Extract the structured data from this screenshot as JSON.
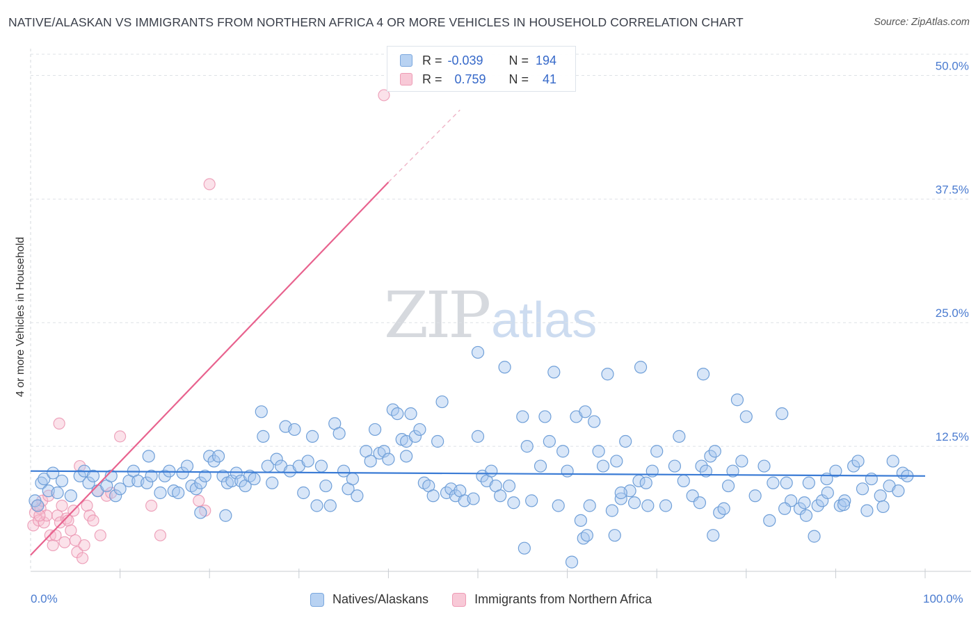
{
  "header": {
    "title": "NATIVE/ALASKAN VS IMMIGRANTS FROM NORTHERN AFRICA 4 OR MORE VEHICLES IN HOUSEHOLD CORRELATION CHART",
    "source": "Source: ZipAtlas.com"
  },
  "watermark": {
    "zip": "ZIP",
    "atlas": "atlas"
  },
  "legend": {
    "rows": [
      {
        "r_label": "R =",
        "r_value": "-0.039",
        "n_label": "N =",
        "n_value": "194"
      },
      {
        "r_label": "R =",
        "r_value": "0.759",
        "n_label": "N =",
        "n_value": "41"
      }
    ]
  },
  "colors": {
    "blue_fill": "#a9c8ef",
    "blue_stroke": "#6f9fd8",
    "blue_line": "#3a7bd5",
    "pink_fill": "#f6bfd0",
    "pink_stroke": "#ea8fac",
    "pink_line": "#e8628e",
    "grid": "#dde1e6",
    "tick_text": "#4a7bd0"
  },
  "chart_data": {
    "type": "scatter",
    "title": "NATIVE/ALASKAN VS IMMIGRANTS FROM NORTHERN AFRICA 4 OR MORE VEHICLES IN HOUSEHOLD CORRELATION CHART",
    "xlabel": "",
    "ylabel": "4 or more Vehicles in Household",
    "xlim": [
      0,
      100
    ],
    "ylim": [
      0,
      52
    ],
    "y_ticks": [
      12.5,
      25.0,
      37.5,
      50.0
    ],
    "y_tick_labels": [
      "12.5%",
      "25.0%",
      "37.5%",
      "50.0%"
    ],
    "x_tick_labels": [
      "0.0%",
      "100.0%"
    ],
    "grid": true,
    "legend_position": "top-center",
    "series": [
      {
        "name": "Natives/Alaskans",
        "trend": {
          "x": [
            0,
            100
          ],
          "y": [
            10.0,
            9.5
          ]
        },
        "points": [
          [
            0.5,
            7.0
          ],
          [
            0.8,
            6.5
          ],
          [
            1.2,
            8.8
          ],
          [
            1.5,
            9.2
          ],
          [
            2.0,
            8.0
          ],
          [
            2.5,
            9.8
          ],
          [
            3.0,
            7.8
          ],
          [
            3.5,
            9.0
          ],
          [
            4.5,
            7.5
          ],
          [
            5.5,
            9.5
          ],
          [
            6.0,
            10.0
          ],
          [
            6.5,
            8.8
          ],
          [
            7.0,
            9.5
          ],
          [
            7.5,
            8.0
          ],
          [
            8.5,
            8.5
          ],
          [
            9.0,
            9.5
          ],
          [
            9.5,
            7.5
          ],
          [
            10.0,
            8.2
          ],
          [
            11.0,
            9.0
          ],
          [
            11.5,
            10.0
          ],
          [
            12.0,
            9.0
          ],
          [
            13.0,
            8.8
          ],
          [
            13.5,
            9.5
          ],
          [
            13.2,
            11.5
          ],
          [
            14.5,
            7.8
          ],
          [
            15.0,
            9.5
          ],
          [
            15.5,
            10.0
          ],
          [
            16.0,
            8.0
          ],
          [
            16.5,
            7.8
          ],
          [
            17.0,
            9.8
          ],
          [
            17.5,
            10.5
          ],
          [
            18.0,
            8.5
          ],
          [
            18.5,
            8.2
          ],
          [
            19.0,
            8.8
          ],
          [
            19.0,
            5.8
          ],
          [
            19.5,
            9.5
          ],
          [
            20.0,
            11.5
          ],
          [
            20.5,
            11.0
          ],
          [
            21.0,
            11.5
          ],
          [
            21.5,
            9.5
          ],
          [
            22.0,
            8.8
          ],
          [
            22.5,
            9.0
          ],
          [
            23.0,
            9.8
          ],
          [
            23.5,
            9.0
          ],
          [
            24.0,
            8.5
          ],
          [
            24.5,
            9.5
          ],
          [
            25.0,
            9.2
          ],
          [
            25.8,
            16.0
          ],
          [
            26.0,
            13.5
          ],
          [
            26.5,
            10.5
          ],
          [
            27.0,
            8.8
          ],
          [
            27.5,
            11.2
          ],
          [
            28.0,
            10.5
          ],
          [
            28.5,
            14.5
          ],
          [
            29.0,
            10.0
          ],
          [
            29.5,
            14.2
          ],
          [
            30.0,
            10.5
          ],
          [
            30.5,
            7.8
          ],
          [
            31.0,
            11.0
          ],
          [
            31.5,
            13.5
          ],
          [
            32.0,
            6.5
          ],
          [
            32.5,
            10.5
          ],
          [
            33.0,
            8.5
          ],
          [
            33.5,
            6.5
          ],
          [
            34.0,
            14.8
          ],
          [
            34.5,
            13.8
          ],
          [
            35.0,
            10.0
          ],
          [
            35.5,
            8.2
          ],
          [
            36.0,
            9.2
          ],
          [
            36.5,
            7.5
          ],
          [
            37.5,
            12.0
          ],
          [
            38.0,
            11.0
          ],
          [
            38.5,
            14.2
          ],
          [
            39.0,
            11.8
          ],
          [
            39.5,
            12.0
          ],
          [
            40.0,
            11.2
          ],
          [
            40.5,
            16.2
          ],
          [
            41.0,
            15.8
          ],
          [
            41.5,
            13.2
          ],
          [
            42.0,
            13.0
          ],
          [
            42.5,
            15.8
          ],
          [
            43.0,
            13.5
          ],
          [
            43.5,
            14.2
          ],
          [
            44.0,
            8.8
          ],
          [
            44.5,
            8.5
          ],
          [
            45.0,
            7.5
          ],
          [
            45.5,
            13.0
          ],
          [
            46.0,
            17.0
          ],
          [
            46.5,
            7.8
          ],
          [
            47.0,
            8.2
          ],
          [
            47.5,
            7.5
          ],
          [
            48.0,
            8.0
          ],
          [
            48.5,
            7.0
          ],
          [
            49.5,
            7.2
          ],
          [
            50.0,
            13.5
          ],
          [
            50.5,
            9.5
          ],
          [
            51.0,
            9.0
          ],
          [
            51.5,
            10.0
          ],
          [
            52.0,
            8.5
          ],
          [
            52.5,
            7.5
          ],
          [
            53.0,
            20.5
          ],
          [
            53.5,
            8.5
          ],
          [
            54.0,
            6.8
          ],
          [
            55.0,
            15.5
          ],
          [
            55.5,
            12.5
          ],
          [
            56.0,
            7.0
          ],
          [
            57.0,
            10.5
          ],
          [
            57.5,
            15.5
          ],
          [
            58.0,
            13.0
          ],
          [
            58.5,
            20.0
          ],
          [
            59.0,
            6.5
          ],
          [
            59.5,
            12.0
          ],
          [
            60.0,
            10.0
          ],
          [
            61.0,
            15.5
          ],
          [
            61.5,
            5.0
          ],
          [
            62.0,
            16.0
          ],
          [
            62.5,
            6.5
          ],
          [
            63.0,
            15.0
          ],
          [
            63.5,
            12.0
          ],
          [
            64.0,
            10.5
          ],
          [
            64.5,
            19.8
          ],
          [
            65.0,
            6.0
          ],
          [
            65.5,
            11.0
          ],
          [
            66.0,
            7.2
          ],
          [
            66.5,
            13.0
          ],
          [
            67.0,
            8.0
          ],
          [
            67.5,
            6.8
          ],
          [
            68.0,
            9.0
          ],
          [
            69.0,
            6.5
          ],
          [
            69.5,
            10.0
          ],
          [
            70.0,
            12.0
          ],
          [
            71.0,
            6.5
          ],
          [
            72.0,
            10.5
          ],
          [
            72.5,
            13.5
          ],
          [
            73.0,
            9.0
          ],
          [
            74.0,
            7.5
          ],
          [
            75.0,
            10.5
          ],
          [
            75.5,
            10.0
          ],
          [
            76.0,
            11.5
          ],
          [
            76.5,
            12.0
          ],
          [
            77.0,
            5.8
          ],
          [
            77.5,
            6.2
          ],
          [
            78.0,
            8.5
          ],
          [
            78.5,
            10.0
          ],
          [
            79.0,
            17.2
          ],
          [
            79.5,
            11.0
          ],
          [
            80.0,
            15.5
          ],
          [
            81.0,
            7.5
          ],
          [
            82.0,
            10.5
          ],
          [
            83.0,
            8.8
          ],
          [
            84.0,
            15.8
          ],
          [
            84.5,
            8.8
          ],
          [
            85.0,
            7.0
          ],
          [
            86.0,
            6.2
          ],
          [
            86.5,
            6.8
          ],
          [
            87.0,
            8.8
          ],
          [
            88.0,
            6.5
          ],
          [
            88.5,
            7.0
          ],
          [
            89.0,
            9.2
          ],
          [
            90.0,
            10.0
          ],
          [
            90.5,
            6.5
          ],
          [
            91.0,
            7.0
          ],
          [
            92.0,
            10.5
          ],
          [
            92.5,
            11.0
          ],
          [
            93.0,
            8.2
          ],
          [
            94.0,
            9.2
          ],
          [
            95.0,
            7.5
          ],
          [
            96.0,
            8.5
          ],
          [
            97.0,
            8.0
          ],
          [
            97.5,
            9.8
          ],
          [
            98.0,
            9.5
          ],
          [
            42.0,
            11.5
          ],
          [
            50.0,
            22.0
          ],
          [
            55.2,
            2.2
          ],
          [
            60.5,
            0.8
          ],
          [
            61.8,
            3.2
          ],
          [
            62.2,
            3.5
          ],
          [
            65.3,
            3.5
          ],
          [
            66.0,
            7.8
          ],
          [
            68.2,
            20.5
          ],
          [
            68.8,
            8.8
          ],
          [
            74.8,
            6.8
          ],
          [
            75.2,
            19.8
          ],
          [
            76.3,
            3.5
          ],
          [
            82.6,
            5.0
          ],
          [
            84.3,
            6.2
          ],
          [
            86.7,
            5.5
          ],
          [
            87.6,
            3.4
          ],
          [
            89.1,
            7.8
          ],
          [
            93.5,
            6.0
          ],
          [
            90.9,
            6.6
          ],
          [
            95.3,
            6.4
          ],
          [
            96.4,
            11.0
          ],
          [
            21.8,
            5.5
          ]
        ]
      },
      {
        "name": "Immigrants from Northern Africa",
        "trend": {
          "x": [
            0,
            40
          ],
          "y": [
            1.5,
            39.2
          ]
        },
        "trend_extension": {
          "x": [
            40,
            48
          ],
          "y": [
            39.2,
            46.5
          ]
        },
        "points": [
          [
            0.3,
            4.5
          ],
          [
            0.5,
            5.8
          ],
          [
            0.7,
            6.5
          ],
          [
            0.9,
            5.0
          ],
          [
            1.1,
            6.2
          ],
          [
            1.3,
            7.0
          ],
          [
            1.5,
            4.8
          ],
          [
            1.8,
            5.5
          ],
          [
            2.0,
            7.5
          ],
          [
            2.2,
            3.5
          ],
          [
            2.5,
            2.5
          ],
          [
            2.8,
            3.5
          ],
          [
            3.0,
            5.5
          ],
          [
            3.3,
            4.8
          ],
          [
            3.5,
            6.5
          ],
          [
            3.8,
            2.8
          ],
          [
            4.0,
            5.2
          ],
          [
            4.2,
            5.0
          ],
          [
            4.5,
            4.0
          ],
          [
            4.8,
            6.0
          ],
          [
            5.0,
            3.0
          ],
          [
            5.2,
            1.8
          ],
          [
            5.5,
            10.5
          ],
          [
            5.8,
            1.2
          ],
          [
            6.0,
            2.5
          ],
          [
            6.3,
            6.5
          ],
          [
            6.6,
            5.5
          ],
          [
            7.0,
            5.0
          ],
          [
            7.5,
            8.0
          ],
          [
            7.8,
            3.5
          ],
          [
            8.5,
            7.5
          ],
          [
            9.0,
            7.8
          ],
          [
            10.0,
            13.5
          ],
          [
            13.5,
            6.5
          ],
          [
            14.5,
            3.5
          ],
          [
            18.8,
            7.0
          ],
          [
            19.5,
            6.0
          ],
          [
            20.0,
            39.0
          ],
          [
            3.2,
            14.8
          ],
          [
            39.5,
            48.0
          ],
          [
            1.0,
            5.5
          ]
        ]
      }
    ]
  }
}
